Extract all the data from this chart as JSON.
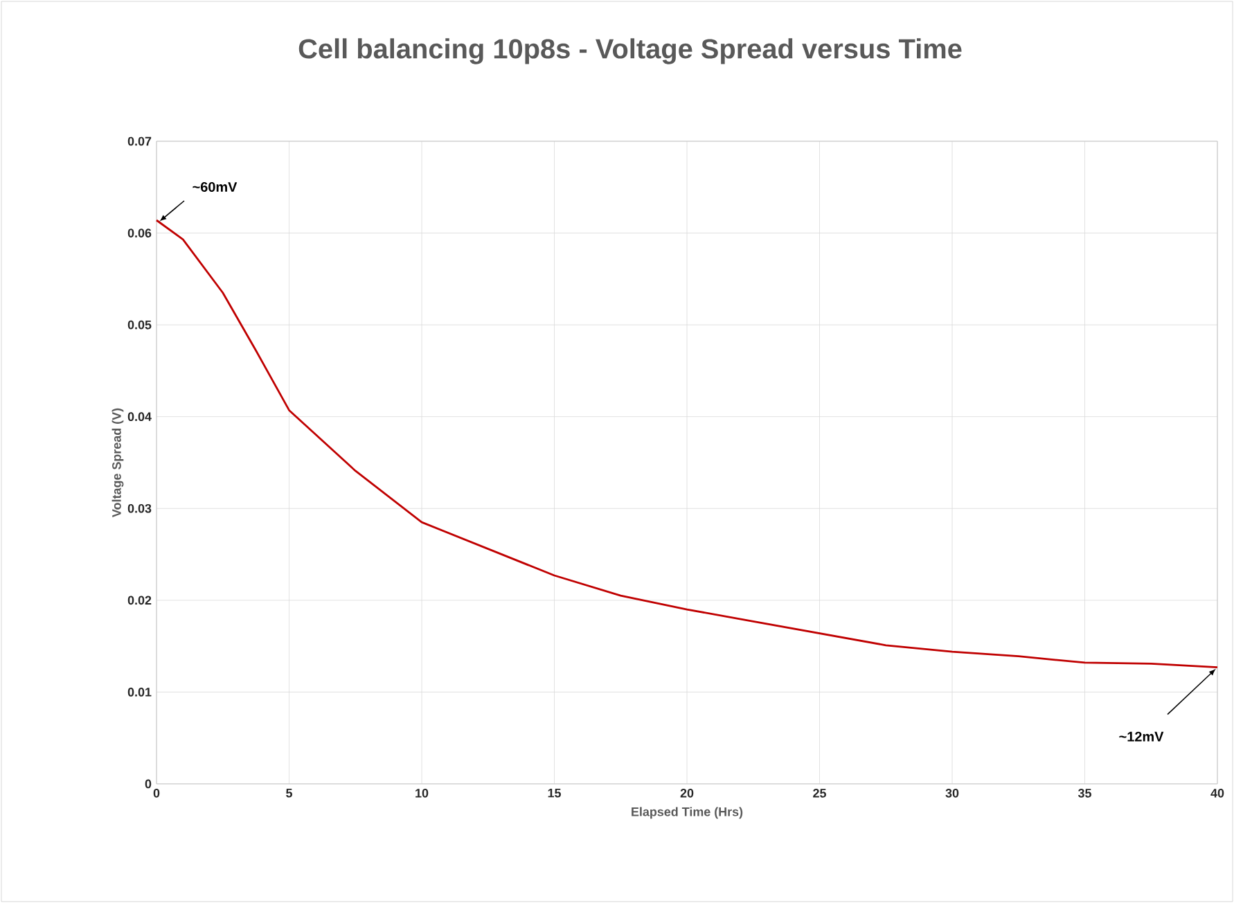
{
  "chart_data": {
    "type": "line",
    "title": "Cell balancing 10p8s - Voltage Spread versus Time",
    "xlabel": "Elapsed Time (Hrs)",
    "ylabel": "Voltage Spread (V)",
    "x": [
      0,
      1,
      2.5,
      3.75,
      5,
      7.5,
      10,
      12.5,
      15,
      17.5,
      20,
      22.5,
      25,
      27.5,
      30,
      32.5,
      35,
      37.5,
      40
    ],
    "series": [
      {
        "color": "#c00000",
        "values": [
          0.0614,
          0.0593,
          0.0535,
          0.0472,
          0.0407,
          0.0341,
          0.0285,
          0.0256,
          0.0227,
          0.0205,
          0.019,
          0.0177,
          0.0164,
          0.0151,
          0.0144,
          0.0139,
          0.0132,
          0.0131,
          0.0127
        ]
      }
    ],
    "xlim": [
      0,
      40
    ],
    "xticks": [
      0,
      5,
      10,
      15,
      20,
      25,
      30,
      35,
      40
    ],
    "ylim": [
      0,
      0.07
    ],
    "yticks": [
      0,
      0.01,
      0.02,
      0.03,
      0.04,
      0.05,
      0.06,
      0.07
    ],
    "grid": true,
    "marker": "none",
    "line_style": "solid",
    "annotations": [
      {
        "text": "~60mV",
        "x": 0,
        "y": 0.0614
      },
      {
        "text": "~12mV",
        "x": 40,
        "y": 0.0127
      }
    ]
  }
}
